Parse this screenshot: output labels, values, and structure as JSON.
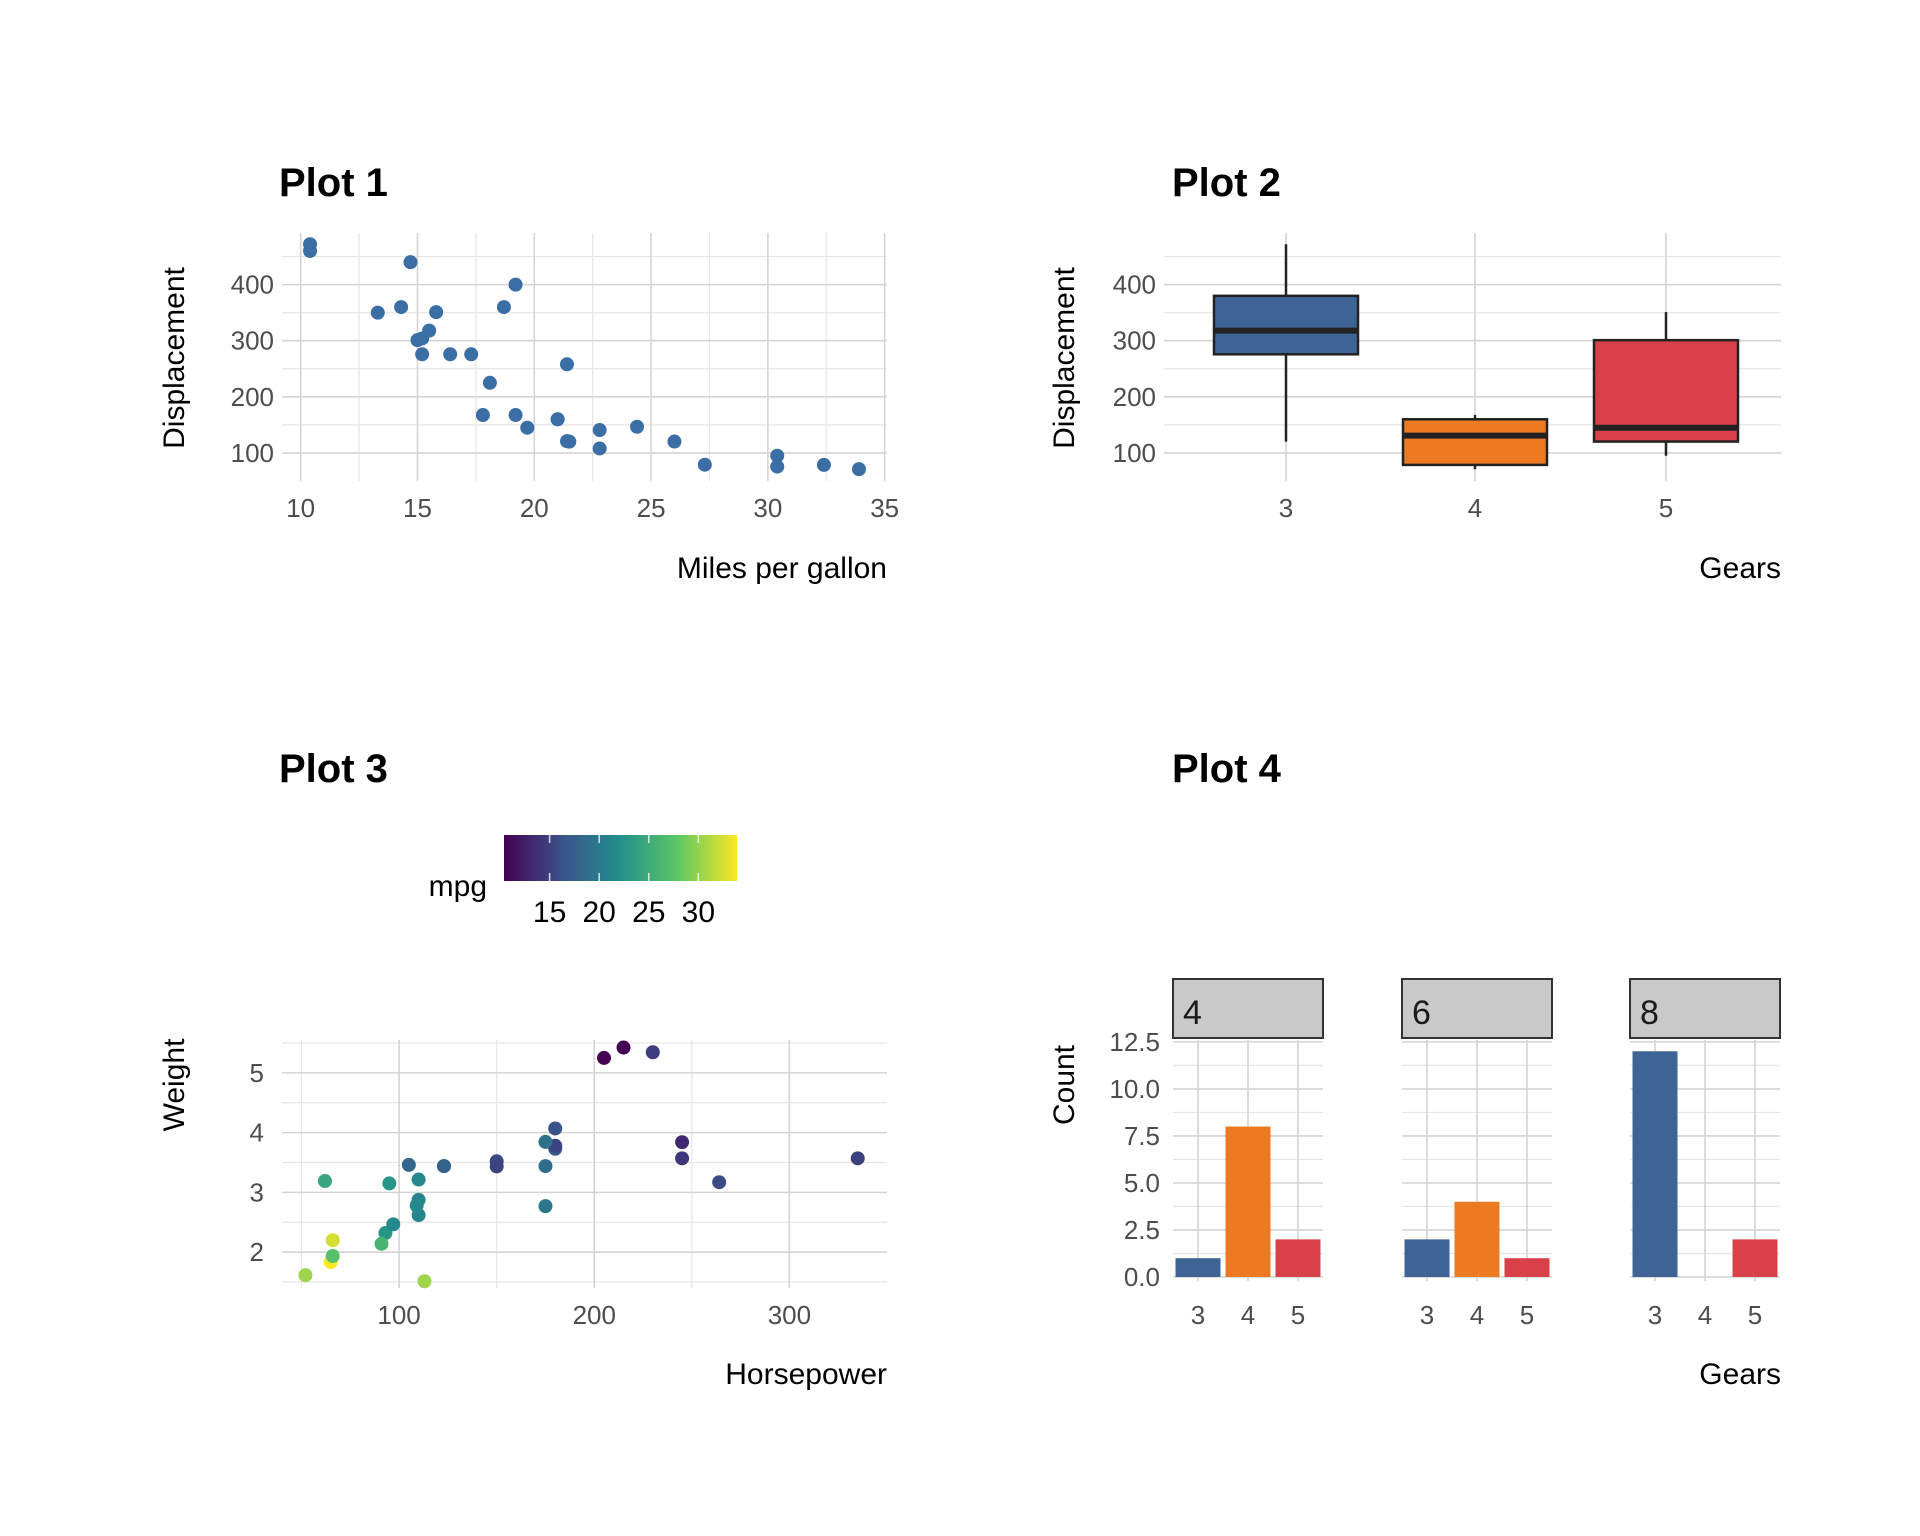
{
  "chart_data": [
    {
      "type": "scatter",
      "title": "Plot 1",
      "xlabel": "Miles per gallon",
      "ylabel": "Displacement",
      "xlim": [
        9.2,
        35.1
      ],
      "ylim": [
        50,
        492
      ],
      "xticks": [
        10,
        15,
        20,
        25,
        30,
        35
      ],
      "yticks": [
        100,
        200,
        300,
        400
      ],
      "grid": true,
      "point_color": "#3a6ea5",
      "x": [
        21,
        21,
        22.8,
        21.4,
        18.7,
        18.1,
        14.3,
        24.4,
        22.8,
        19.2,
        17.8,
        16.4,
        17.3,
        15.2,
        10.4,
        10.4,
        14.7,
        32.4,
        30.4,
        33.9,
        21.5,
        15.5,
        15.2,
        13.3,
        19.2,
        27.3,
        26,
        30.4,
        15.8,
        19.7,
        15,
        21.4
      ],
      "y": [
        160,
        160,
        108,
        258,
        360,
        225,
        360,
        146.7,
        140.8,
        167.6,
        167.6,
        275.8,
        275.8,
        275.8,
        472,
        460,
        440,
        78.7,
        75.7,
        71.1,
        120.1,
        318,
        304,
        350,
        400,
        79,
        120.3,
        95.1,
        351,
        145,
        301,
        121
      ]
    },
    {
      "type": "box",
      "title": "Plot 2",
      "xlabel": "Gears",
      "ylabel": "Displacement",
      "ylim": [
        50,
        492
      ],
      "yticks": [
        100,
        200,
        300,
        400
      ],
      "grid": true,
      "categories": [
        "3",
        "4",
        "5"
      ],
      "colors": [
        "#3e6496",
        "#ec7a22",
        "#d8414a"
      ],
      "boxes": [
        {
          "min": 120.1,
          "q1": 275.8,
          "median": 318,
          "q3": 380,
          "max": 472
        },
        {
          "min": 71.1,
          "q1": 78.7,
          "median": 130.9,
          "q3": 160,
          "max": 167.6
        },
        {
          "min": 95.1,
          "q1": 120.3,
          "median": 145,
          "q3": 301,
          "max": 351
        }
      ]
    },
    {
      "type": "scatter",
      "title": "Plot 3",
      "xlabel": "Horsepower",
      "ylabel": "Weight",
      "xlim": [
        40,
        350
      ],
      "ylim": [
        1.4,
        5.55
      ],
      "xticks": [
        100,
        200,
        300
      ],
      "yticks": [
        2,
        3,
        4,
        5
      ],
      "grid": true,
      "legend": {
        "title": "mpg",
        "position": "top",
        "range": [
          10.4,
          33.9
        ],
        "ticks": [
          "15",
          "20",
          "25",
          "30"
        ],
        "palette": [
          "#440154",
          "#3b528b",
          "#21908c",
          "#5dc863",
          "#fde725"
        ]
      },
      "x": [
        110,
        110,
        93,
        110,
        175,
        105,
        245,
        62,
        95,
        123,
        123,
        180,
        180,
        180,
        205,
        215,
        230,
        66,
        52,
        65,
        97,
        150,
        150,
        245,
        175,
        66,
        91,
        113,
        264,
        175,
        335,
        109
      ],
      "y": [
        2.62,
        2.875,
        2.32,
        3.215,
        3.44,
        3.46,
        3.57,
        3.19,
        3.15,
        3.44,
        3.44,
        4.07,
        3.73,
        3.78,
        5.25,
        5.424,
        5.345,
        2.2,
        1.615,
        1.835,
        2.465,
        3.52,
        3.435,
        3.84,
        3.845,
        1.935,
        2.14,
        1.513,
        3.17,
        2.77,
        3.57,
        2.78
      ],
      "color_value": [
        21,
        21,
        22.8,
        21.4,
        18.7,
        18.1,
        14.3,
        24.4,
        22.8,
        19.2,
        17.8,
        16.4,
        17.3,
        15.2,
        10.4,
        10.4,
        14.7,
        32.4,
        30.4,
        33.9,
        21.5,
        15.5,
        15.2,
        13.3,
        19.2,
        27.3,
        26,
        30.4,
        15.8,
        19.7,
        15,
        21.4
      ]
    },
    {
      "type": "bar",
      "title": "Plot 4",
      "xlabel": "Gears",
      "ylabel": "Count",
      "ylim": [
        0,
        12.6
      ],
      "yticks": [
        "0.0",
        "2.5",
        "5.0",
        "7.5",
        "10.0",
        "12.5"
      ],
      "grid": true,
      "categories": [
        "3",
        "4",
        "5"
      ],
      "colors": [
        "#3e6496",
        "#ec7a22",
        "#d8414a"
      ],
      "facets": [
        {
          "label": "4",
          "values": [
            1,
            8,
            2
          ]
        },
        {
          "label": "6",
          "values": [
            2,
            4,
            1
          ]
        },
        {
          "label": "8",
          "values": [
            12,
            0,
            2
          ]
        }
      ]
    }
  ]
}
